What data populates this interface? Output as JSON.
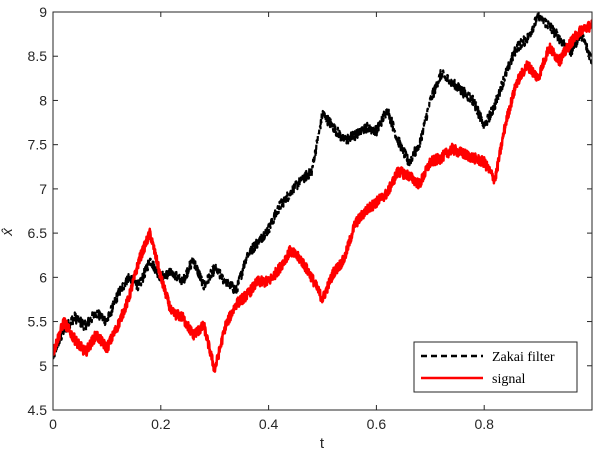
{
  "chart_data": {
    "type": "line",
    "xlabel": "t",
    "ylabel": "x̂",
    "xlim": [
      0,
      1
    ],
    "ylim": [
      4.5,
      9
    ],
    "xticks": [
      0,
      0.2,
      0.4,
      0.6,
      0.8
    ],
    "xtick_labels": [
      "0",
      "0.2",
      "0.4",
      "0.6",
      "0.8"
    ],
    "yticks": [
      4.5,
      5,
      5.5,
      6,
      6.5,
      7,
      7.5,
      8,
      8.5,
      9
    ],
    "ytick_labels": [
      "4.5",
      "5",
      "5.5",
      "6",
      "6.5",
      "7",
      "7.5",
      "8",
      "8.5",
      "9"
    ],
    "grid": false,
    "legend_position": "bottom-right",
    "series": [
      {
        "name": "Zakai filter",
        "color": "#000000",
        "style": "dashed",
        "x": [
          0,
          0.02,
          0.04,
          0.06,
          0.08,
          0.1,
          0.12,
          0.14,
          0.16,
          0.18,
          0.2,
          0.22,
          0.24,
          0.26,
          0.28,
          0.3,
          0.32,
          0.34,
          0.36,
          0.38,
          0.4,
          0.42,
          0.44,
          0.46,
          0.48,
          0.5,
          0.52,
          0.54,
          0.56,
          0.58,
          0.6,
          0.62,
          0.64,
          0.66,
          0.68,
          0.7,
          0.72,
          0.74,
          0.76,
          0.78,
          0.8,
          0.82,
          0.84,
          0.86,
          0.88,
          0.9,
          0.92,
          0.94,
          0.96,
          0.98,
          1.0
        ],
        "y": [
          5.1,
          5.4,
          5.55,
          5.45,
          5.6,
          5.5,
          5.8,
          6.0,
          5.9,
          6.2,
          6.0,
          6.05,
          5.95,
          6.2,
          5.9,
          6.1,
          5.95,
          5.85,
          6.25,
          6.4,
          6.55,
          6.8,
          6.95,
          7.1,
          7.2,
          7.85,
          7.7,
          7.55,
          7.6,
          7.7,
          7.65,
          7.9,
          7.55,
          7.3,
          7.5,
          8.0,
          8.3,
          8.2,
          8.1,
          8.0,
          7.7,
          7.95,
          8.3,
          8.6,
          8.7,
          8.95,
          8.85,
          8.7,
          8.55,
          8.75,
          8.45
        ]
      },
      {
        "name": "signal",
        "color": "#ff0000",
        "style": "solid",
        "x": [
          0,
          0.02,
          0.04,
          0.06,
          0.08,
          0.1,
          0.12,
          0.14,
          0.16,
          0.18,
          0.2,
          0.22,
          0.24,
          0.26,
          0.28,
          0.3,
          0.32,
          0.34,
          0.36,
          0.38,
          0.4,
          0.42,
          0.44,
          0.46,
          0.48,
          0.5,
          0.52,
          0.54,
          0.56,
          0.58,
          0.6,
          0.62,
          0.64,
          0.66,
          0.68,
          0.7,
          0.72,
          0.74,
          0.76,
          0.78,
          0.8,
          0.82,
          0.84,
          0.86,
          0.88,
          0.9,
          0.92,
          0.94,
          0.96,
          0.98,
          1.0
        ],
        "y": [
          5.15,
          5.5,
          5.3,
          5.15,
          5.35,
          5.2,
          5.45,
          5.75,
          6.2,
          6.5,
          6.0,
          5.6,
          5.55,
          5.35,
          5.45,
          4.95,
          5.45,
          5.7,
          5.8,
          5.95,
          5.95,
          6.1,
          6.3,
          6.2,
          6.0,
          5.75,
          6.05,
          6.2,
          6.6,
          6.75,
          6.85,
          6.95,
          7.2,
          7.15,
          7.05,
          7.3,
          7.35,
          7.45,
          7.4,
          7.35,
          7.3,
          7.1,
          7.75,
          8.2,
          8.4,
          8.25,
          8.6,
          8.45,
          8.65,
          8.8,
          8.85
        ]
      }
    ]
  }
}
